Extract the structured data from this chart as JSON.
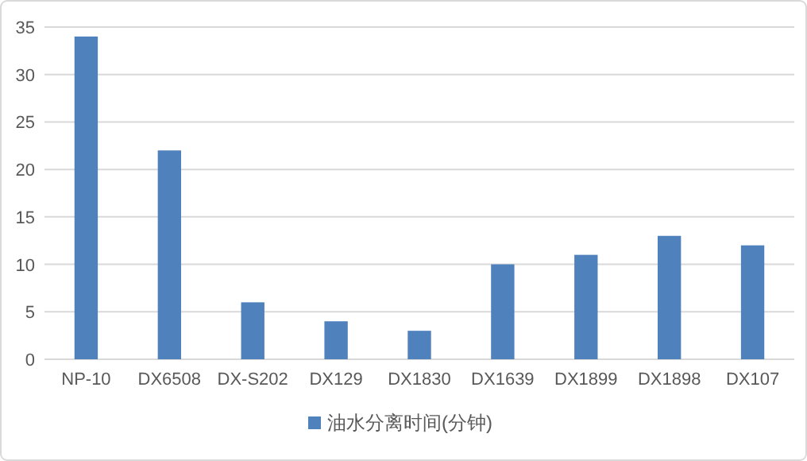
{
  "chart_data": {
    "type": "bar",
    "categories": [
      "NP-10",
      "DX6508",
      "DX-S202",
      "DX129",
      "DX1830",
      "DX1639",
      "DX1899",
      "DX1898",
      "DX107"
    ],
    "series": [
      {
        "name": "油水分离时间(分钟)",
        "color": "#4f81bd",
        "values": [
          34,
          22,
          6,
          4,
          3,
          10,
          11,
          13,
          12
        ]
      }
    ],
    "ylim": [
      0,
      35
    ],
    "yticks": [
      0,
      5,
      10,
      15,
      20,
      25,
      30,
      35
    ],
    "grid": "y",
    "legend": "bottom"
  }
}
